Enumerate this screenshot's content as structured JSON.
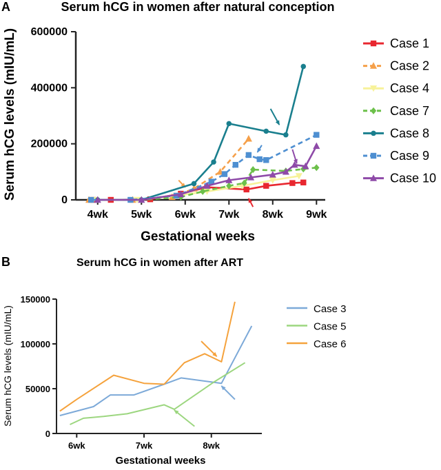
{
  "panel_a_letter": "A",
  "panel_b_letter": "B",
  "chart_data": [
    {
      "type": "line",
      "title": "Serum hCG in women after natural conception",
      "xlabel": "Gestational weeks",
      "ylabel": "Serum hCG levels (mIU/mL)",
      "xlim": [
        3.5,
        9.2
      ],
      "ylim": [
        0,
        600000
      ],
      "xticks": [
        4,
        5,
        6,
        7,
        8,
        9
      ],
      "xtick_labels": [
        "4wk",
        "5wk",
        "6wk",
        "7wk",
        "8wk",
        "9wk"
      ],
      "yticks": [
        0,
        200000,
        400000,
        600000
      ],
      "ytick_labels": [
        "0",
        "200000",
        "400000",
        "600000"
      ],
      "grid": false,
      "legend_position": "right",
      "series": [
        {
          "name": "Case 1",
          "color": "#e8272f",
          "dash": "solid",
          "marker": "square",
          "points": [
            [
              3.9,
              0
            ],
            [
              4.3,
              0
            ],
            [
              5.2,
              2000
            ],
            [
              5.9,
              22000
            ],
            [
              6.5,
              45000
            ],
            [
              7.4,
              37000
            ],
            [
              7.85,
              50000
            ],
            [
              8.45,
              60000
            ],
            [
              8.7,
              62000
            ]
          ]
        },
        {
          "name": "Case 2",
          "color": "#f5a04a",
          "dash": "dashed",
          "marker": "triangle",
          "points": [
            [
              3.8,
              0
            ],
            [
              4.8,
              0
            ],
            [
              5.7,
              10000
            ],
            [
              6.2,
              40000
            ],
            [
              6.8,
              100000
            ],
            [
              7.45,
              218000
            ]
          ]
        },
        {
          "name": "Case 4",
          "color": "#f7f29a",
          "dash": "solid",
          "marker": "triangle-down",
          "points": [
            [
              3.9,
              0
            ],
            [
              4.9,
              0
            ],
            [
              5.8,
              15000
            ],
            [
              6.5,
              30000
            ],
            [
              7.3,
              50000
            ],
            [
              8.0,
              70000
            ],
            [
              8.6,
              85000
            ]
          ]
        },
        {
          "name": "Case 7",
          "color": "#6cc04a",
          "dash": "dashed",
          "marker": "diamond",
          "points": [
            [
              4.0,
              0
            ],
            [
              5.0,
              0
            ],
            [
              5.9,
              10000
            ],
            [
              6.4,
              30000
            ],
            [
              7.0,
              50000
            ],
            [
              7.35,
              60000
            ],
            [
              7.55,
              108000
            ],
            [
              8.3,
              103000
            ],
            [
              8.7,
              110000
            ],
            [
              9.0,
              115000
            ]
          ]
        },
        {
          "name": "Case 8",
          "color": "#1a7f8e",
          "dash": "solid",
          "marker": "circle",
          "points": [
            [
              4.0,
              0
            ],
            [
              5.0,
              0
            ],
            [
              6.2,
              58000
            ],
            [
              6.65,
              135000
            ],
            [
              7.0,
              272000
            ],
            [
              7.85,
              245000
            ],
            [
              8.3,
              232000
            ],
            [
              8.7,
              476000
            ]
          ]
        },
        {
          "name": "Case 9",
          "color": "#4e8fd1",
          "dash": "dashed",
          "marker": "square",
          "points": [
            [
              3.85,
              0
            ],
            [
              4.75,
              0
            ],
            [
              5.8,
              15000
            ],
            [
              6.6,
              65000
            ],
            [
              6.9,
              92000
            ],
            [
              7.15,
              125000
            ],
            [
              7.45,
              160000
            ],
            [
              7.7,
              145000
            ],
            [
              7.85,
              142000
            ],
            [
              9.0,
              232000
            ]
          ]
        },
        {
          "name": "Case 10",
          "color": "#8e4aa8",
          "dash": "solid",
          "marker": "triangle",
          "points": [
            [
              4.0,
              0
            ],
            [
              5.0,
              0
            ],
            [
              5.9,
              20000
            ],
            [
              6.5,
              50000
            ],
            [
              7.0,
              70000
            ],
            [
              7.5,
              80000
            ],
            [
              8.0,
              90000
            ],
            [
              8.3,
              100000
            ],
            [
              8.5,
              125000
            ],
            [
              8.75,
              120000
            ],
            [
              9.0,
              192000
            ]
          ]
        }
      ],
      "annotations": [
        {
          "kind": "arrow",
          "color": "#f5a04a",
          "from": [
            5.85,
            70000
          ],
          "to": [
            6.0,
            45000
          ]
        },
        {
          "kind": "arrow",
          "color": "#e8272f",
          "from": [
            7.55,
            -25000
          ],
          "to": [
            7.45,
            5000
          ]
        },
        {
          "kind": "arrow",
          "color": "#1a7f8e",
          "from": [
            7.95,
            325000
          ],
          "to": [
            8.15,
            268000
          ]
        },
        {
          "kind": "arrow",
          "color": "#4e8fd1",
          "from": [
            7.75,
            195000
          ],
          "to": [
            7.65,
            170000
          ]
        },
        {
          "kind": "arrow",
          "color": "#8e4aa8",
          "from": [
            8.45,
            180000
          ],
          "to": [
            8.55,
            130000
          ]
        }
      ]
    },
    {
      "type": "line",
      "title": "Serum hCG in women after ART",
      "xlabel": "Gestational weeks",
      "ylabel": "Serum hCG levels (mIU/mL)",
      "xlim": [
        5.7,
        8.75
      ],
      "ylim": [
        0,
        150000
      ],
      "xticks": [
        6,
        7,
        8
      ],
      "xtick_labels": [
        "6wk",
        "7wk",
        "8wk"
      ],
      "yticks": [
        0,
        50000,
        100000,
        150000
      ],
      "ytick_labels": [
        "0",
        "50000",
        "100000",
        "150000"
      ],
      "grid": false,
      "legend_position": "right",
      "series": [
        {
          "name": "Case 3",
          "color": "#7ca9d8",
          "dash": "solid",
          "marker": "none",
          "points": [
            [
              5.75,
              20000
            ],
            [
              6.0,
              25000
            ],
            [
              6.25,
              30000
            ],
            [
              6.5,
              43000
            ],
            [
              6.85,
              43000
            ],
            [
              7.3,
              55000
            ],
            [
              7.55,
              62000
            ],
            [
              8.15,
              56000
            ],
            [
              8.6,
              120000
            ]
          ]
        },
        {
          "name": "Case 5",
          "color": "#9cd67f",
          "dash": "solid",
          "marker": "none",
          "points": [
            [
              5.9,
              10000
            ],
            [
              6.1,
              17000
            ],
            [
              6.4,
              19000
            ],
            [
              6.75,
              22000
            ],
            [
              7.3,
              32000
            ],
            [
              7.45,
              27000
            ],
            [
              8.05,
              58000
            ],
            [
              8.5,
              79000
            ]
          ]
        },
        {
          "name": "Case 6",
          "color": "#f5a23c",
          "dash": "solid",
          "marker": "none",
          "points": [
            [
              5.75,
              25000
            ],
            [
              6.0,
              38000
            ],
            [
              6.55,
              65000
            ],
            [
              7.0,
              56000
            ],
            [
              7.3,
              55000
            ],
            [
              7.6,
              79000
            ],
            [
              7.9,
              89000
            ],
            [
              8.15,
              80000
            ],
            [
              8.35,
              147000
            ]
          ]
        }
      ],
      "annotations": [
        {
          "kind": "arrow",
          "color": "#f5a23c",
          "from": [
            7.85,
            103000
          ],
          "to": [
            8.08,
            86000
          ]
        },
        {
          "kind": "arrow",
          "color": "#7ca9d8",
          "from": [
            8.35,
            38000
          ],
          "to": [
            8.15,
            53000
          ]
        },
        {
          "kind": "arrow",
          "color": "#9cd67f",
          "from": [
            7.75,
            8000
          ],
          "to": [
            7.45,
            26000
          ]
        }
      ]
    }
  ]
}
